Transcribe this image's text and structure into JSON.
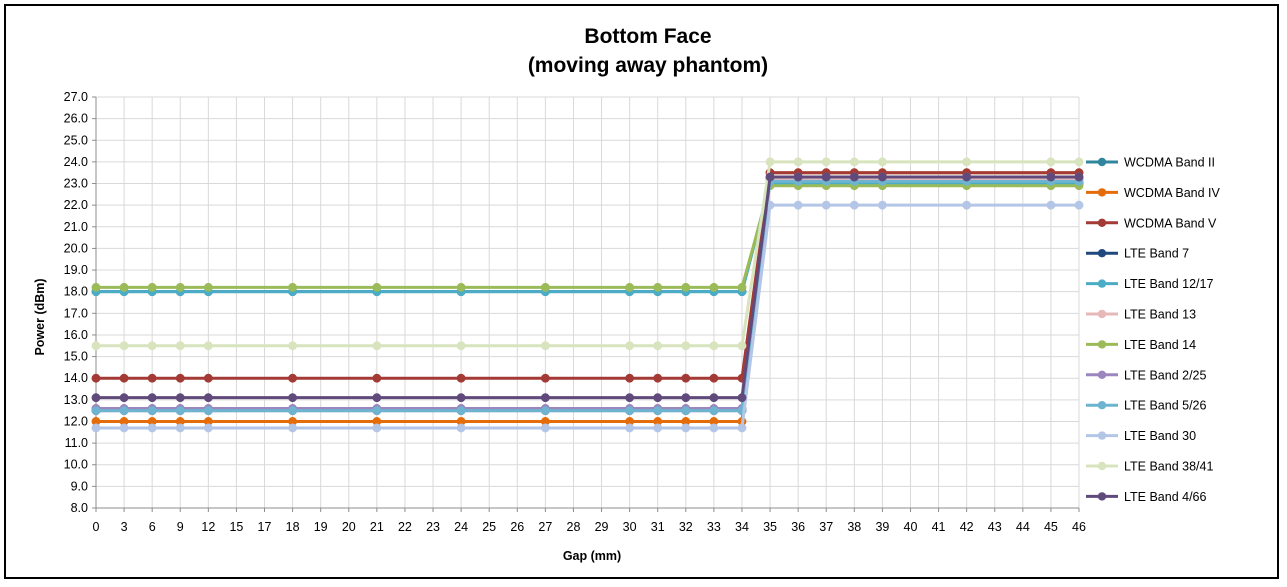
{
  "chart_data": {
    "type": "line",
    "title": [
      "Bottom Face",
      "(moving away phantom)"
    ],
    "xlabel": "Gap (mm)",
    "ylabel": "Power (dBm)",
    "categories": [
      "0",
      "3",
      "6",
      "9",
      "12",
      "15",
      "17",
      "18",
      "19",
      "20",
      "21",
      "22",
      "23",
      "24",
      "25",
      "26",
      "27",
      "28",
      "29",
      "30",
      "31",
      "32",
      "33",
      "34",
      "35",
      "36",
      "37",
      "38",
      "39",
      "40",
      "41",
      "42",
      "43",
      "44",
      "45",
      "46"
    ],
    "marker_categories": [
      "0",
      "3",
      "6",
      "9",
      "12",
      "18",
      "21",
      "24",
      "27",
      "30",
      "31",
      "32",
      "33",
      "34",
      "35",
      "36",
      "37",
      "38",
      "39",
      "42",
      "45",
      "46"
    ],
    "ylim": [
      8.0,
      27.0
    ],
    "ytick_step": 1.0,
    "grid": true,
    "legend_position": "right",
    "series": [
      {
        "name": "WCDMA Band II",
        "color": "#31859c",
        "before": 18.0,
        "after": 23.0
      },
      {
        "name": "WCDMA Band IV",
        "color": "#e46c0a",
        "before": 12.0,
        "after": 23.5
      },
      {
        "name": "WCDMA Band V",
        "color": "#a33a36",
        "before": 14.0,
        "after": 23.5
      },
      {
        "name": "LTE Band 7",
        "color": "#1f497d",
        "before": 12.5,
        "after": 23.2
      },
      {
        "name": "LTE Band 12/17",
        "color": "#4bacc6",
        "before": 18.0,
        "after": 23.0
      },
      {
        "name": "LTE Band 13",
        "color": "#e6b9b8",
        "before": 12.6,
        "after": 23.2
      },
      {
        "name": "LTE Band 14",
        "color": "#9bbb59",
        "before": 18.2,
        "after": 22.9
      },
      {
        "name": "LTE Band 2/25",
        "color": "#9b86be",
        "before": 12.6,
        "after": 23.3
      },
      {
        "name": "LTE Band 5/26",
        "color": "#6eb4d1",
        "before": 12.5,
        "after": 23.1
      },
      {
        "name": "LTE Band 30",
        "color": "#b3c6e7",
        "before": 11.7,
        "after": 22.0
      },
      {
        "name": "LTE Band 38/41",
        "color": "#d7e4bd",
        "before": 15.5,
        "after": 24.0
      },
      {
        "name": "LTE Band 4/66",
        "color": "#604a7b",
        "before": 13.1,
        "after": 23.3
      }
    ]
  }
}
